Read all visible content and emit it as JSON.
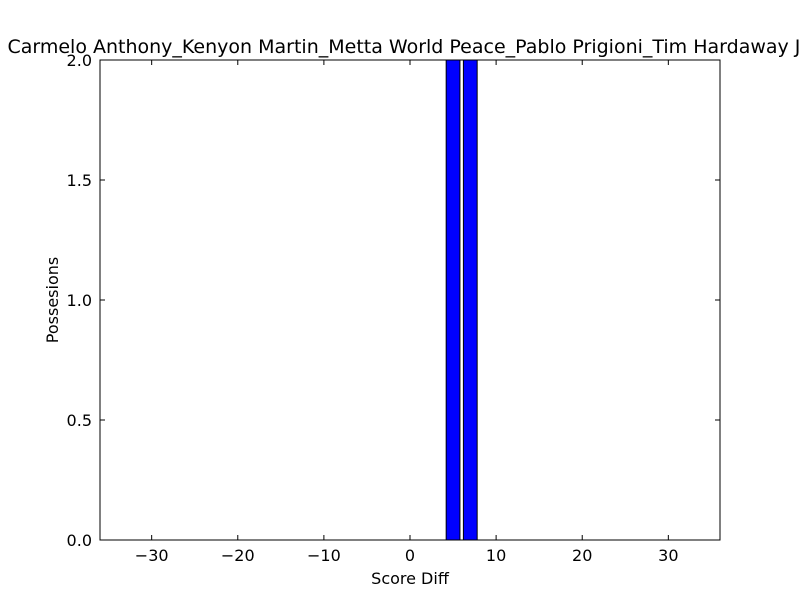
{
  "chart_data": {
    "type": "bar",
    "title": "Carmelo Anthony_Kenyon Martin_Metta World Peace_Pablo Prigioni_Tim Hardaway Jr.",
    "xlabel": "Score Diff",
    "ylabel": "Possesions",
    "xlim": [
      -36,
      36
    ],
    "ylim": [
      0,
      2
    ],
    "bar_width": 1.6,
    "bar_color": "#0000ff",
    "grid": false,
    "x_ticks": [
      -30,
      -20,
      -10,
      0,
      10,
      20,
      30
    ],
    "x_tick_labels": [
      "−30",
      "−20",
      "−10",
      "0",
      "10",
      "20",
      "30"
    ],
    "y_ticks": [
      0,
      0.5,
      1,
      1.5,
      2
    ],
    "y_tick_labels": [
      "0.0",
      "0.5",
      "1.0",
      "1.5",
      "2.0"
    ],
    "bars": [
      {
        "x": 5,
        "value": 2
      },
      {
        "x": 7,
        "value": 2
      }
    ]
  }
}
